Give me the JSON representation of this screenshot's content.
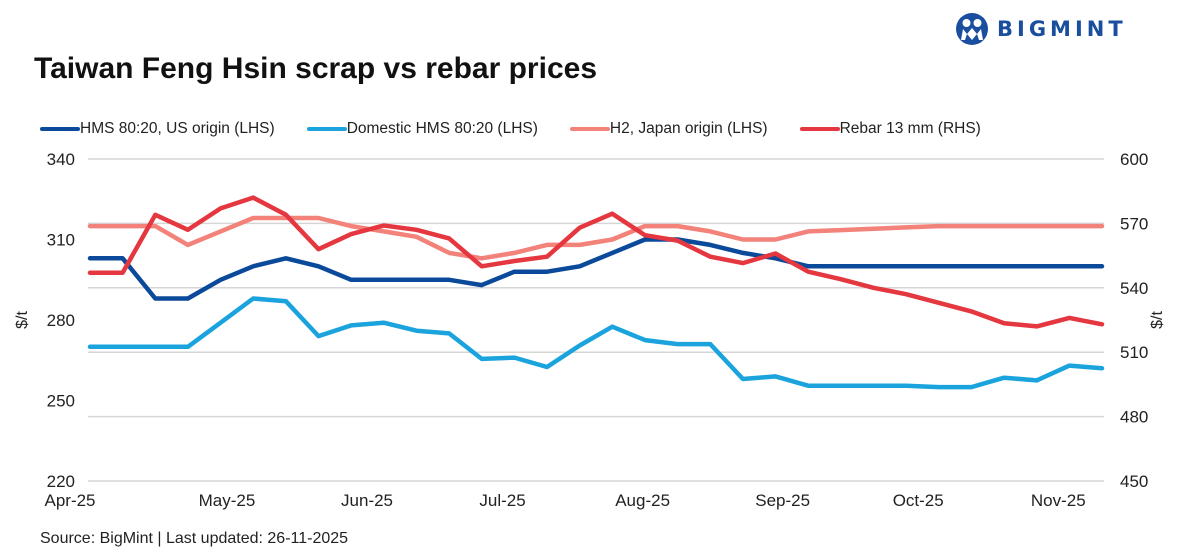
{
  "logo": {
    "text": "BIGMINT",
    "color": "#1a4fa0"
  },
  "source": "Source: BigMint |  Last updated: 26-11-2025",
  "chart_data": {
    "type": "line",
    "title": "Taiwan Feng Hsin scrap vs rebar prices",
    "ylabel_left": "$/t",
    "ylabel_right": "$/t",
    "ylim_left": [
      220,
      340
    ],
    "ylim_right": [
      450,
      600
    ],
    "yticks_left": [
      "220",
      "250",
      "280",
      "310",
      "340"
    ],
    "yticks_right": [
      "450",
      "480",
      "510",
      "540",
      "570",
      "600"
    ],
    "xticks": [
      {
        "label": "Apr-25",
        "date": "2025-04-01"
      },
      {
        "label": "May-25",
        "date": "2025-05-01"
      },
      {
        "label": "Jun-25",
        "date": "2025-06-01"
      },
      {
        "label": "Jul-25",
        "date": "2025-07-01"
      },
      {
        "label": "Aug-25",
        "date": "2025-08-01"
      },
      {
        "label": "Sep-25",
        "date": "2025-09-01"
      },
      {
        "label": "Oct-25",
        "date": "2025-10-01"
      },
      {
        "label": "Nov-25",
        "date": "2025-11-01"
      }
    ],
    "x_start": "2025-04-04",
    "x_end": "2025-11-14",
    "x_frequency": "weekly",
    "grid": true,
    "legend_position": "top",
    "series": [
      {
        "name": "HMS 80:20, US origin (LHS)",
        "axis": "left",
        "color": "#0b4a9a",
        "values": [
          303,
          303,
          288,
          288,
          295,
          300,
          303,
          300,
          295,
          295,
          295,
          295,
          293,
          298,
          298,
          300,
          305,
          310,
          310,
          308,
          305,
          303,
          300,
          300,
          300,
          300,
          300,
          300,
          300,
          300,
          300,
          300
        ]
      },
      {
        "name": "Domestic HMS 80:20 (LHS)",
        "axis": "left",
        "color": "#1aa3dd",
        "values": [
          270,
          270,
          270,
          270,
          279,
          288,
          287,
          274,
          278,
          279,
          276,
          275,
          265.5,
          266,
          262.5,
          270.5,
          277.5,
          272.5,
          271,
          271,
          258,
          259,
          255.5,
          255.5,
          255.5,
          255.5,
          255,
          255,
          258.5,
          257.5,
          263,
          262
        ]
      },
      {
        "name": "H2, Japan origin (LHS)",
        "axis": "left",
        "color": "#f2827a",
        "values": [
          315,
          315,
          315,
          308,
          313,
          318,
          318,
          318,
          315,
          313,
          311,
          305,
          303,
          305,
          308,
          308,
          310,
          315,
          315,
          313,
          310,
          310,
          313,
          313.5,
          314,
          314.5,
          315,
          315,
          315,
          315,
          315,
          315
        ]
      },
      {
        "name": "Rebar 13 mm (RHS)",
        "axis": "right",
        "color": "#e5373f",
        "values": [
          547,
          547,
          574,
          567,
          577,
          582,
          574,
          558,
          565,
          569,
          567,
          563,
          550,
          552.5,
          554.5,
          568,
          574.5,
          564.5,
          562,
          554.5,
          551.5,
          556,
          547.5,
          544,
          540,
          537,
          533,
          529,
          523.5,
          522,
          526,
          523
        ]
      }
    ]
  }
}
